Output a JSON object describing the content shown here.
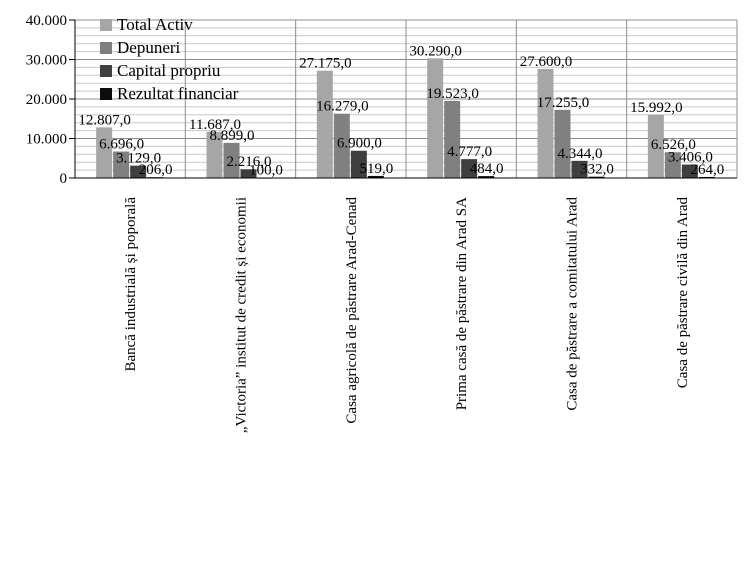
{
  "chart_data": {
    "type": "bar",
    "title": "",
    "xlabel": "",
    "ylabel": "",
    "ylim": [
      0,
      40000
    ],
    "y_ticks": [
      "0",
      "10.000",
      "20.000",
      "30.000",
      "40.000"
    ],
    "grid": true,
    "legend_position": "top-left",
    "categories": [
      "Bancă industrială și poporală",
      "„Victoria” institut de credit și economii",
      "Casa agricolă de păstrare Arad-Cenad",
      "Prima casă de păstrare din Arad SA",
      "Casa de păstrare a comitatului Arad",
      "Casa de păstrare civilă din Arad"
    ],
    "series": [
      {
        "name": "Total Activ",
        "color": "#a6a6a6",
        "values": [
          12807,
          11687,
          27175,
          30290,
          27600,
          15992
        ],
        "labels": [
          "12.807,0",
          "11.687,0",
          "27.175,0",
          "30.290,0",
          "27.600,0",
          "15.992,0"
        ]
      },
      {
        "name": "Depuneri",
        "color": "#808080",
        "values": [
          6696,
          8899,
          16279,
          19523,
          17255,
          6526
        ],
        "labels": [
          "6.696,0",
          "8.899,0",
          "16.279,0",
          "19.523,0",
          "17.255,0",
          "6.526,0"
        ]
      },
      {
        "name": "Capital propriu",
        "color": "#3f3f3f",
        "values": [
          3129,
          2216,
          6900,
          4777,
          4344,
          3406
        ],
        "labels": [
          "3.129,0",
          "2.216,0",
          "6.900,0",
          "4.777,0",
          "4.344,0",
          "3.406,0"
        ]
      },
      {
        "name": "Rezultat financiar",
        "color": "#0d0d0d",
        "values": [
          206,
          100,
          519,
          484,
          332,
          264
        ],
        "labels": [
          "206,0",
          "100,0",
          "519,0",
          "484,0",
          "332,0",
          "264,0"
        ]
      }
    ]
  }
}
